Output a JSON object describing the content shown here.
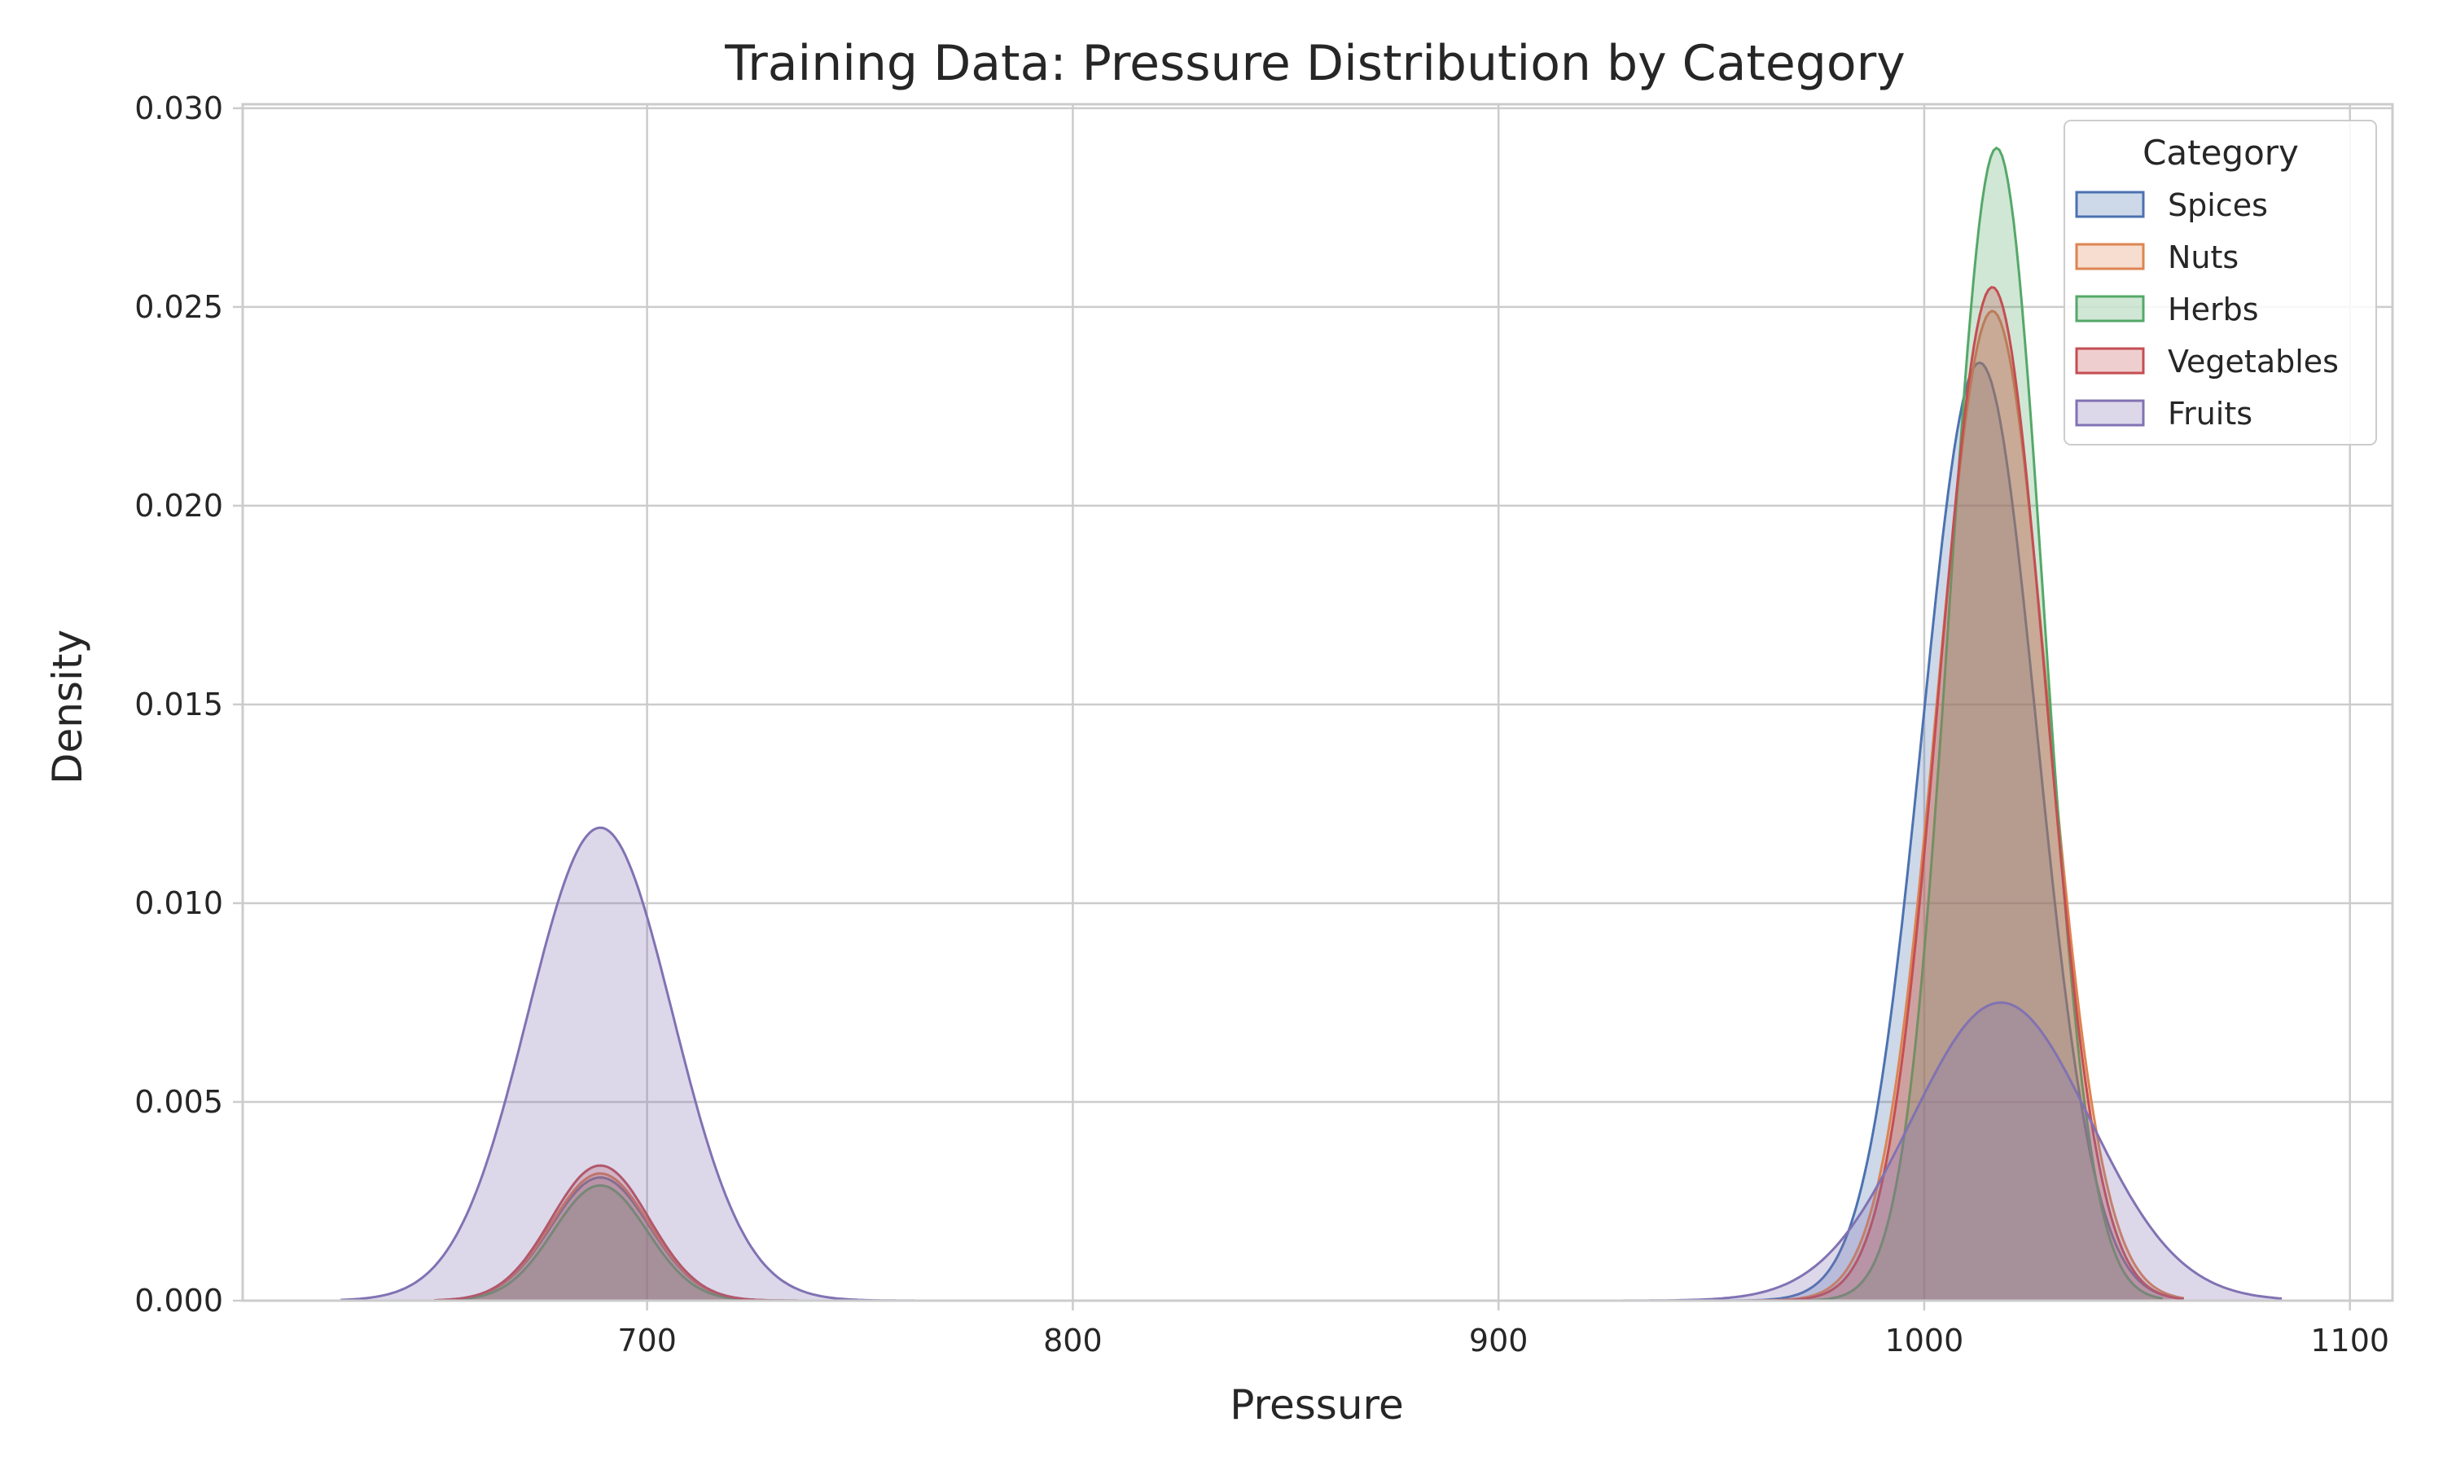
{
  "chart_data": {
    "type": "area",
    "title": "Training Data: Pressure Distribution by Category",
    "xlabel": "Pressure",
    "ylabel": "Density",
    "xlim": [
      605,
      1110
    ],
    "ylim": [
      0,
      0.0301
    ],
    "xticks": [
      700,
      800,
      900,
      1000,
      1100
    ],
    "yticks": [
      0.0,
      0.005,
      0.01,
      0.015,
      0.02,
      0.025,
      0.03
    ],
    "ytick_labels": [
      "0.000",
      "0.005",
      "0.010",
      "0.015",
      "0.020",
      "0.025",
      "0.030"
    ],
    "grid": true,
    "legend": {
      "title": "Category",
      "position": "top-right"
    },
    "series": [
      {
        "name": "Spices",
        "color": "#4c72b0",
        "components": [
          {
            "mu": 689,
            "sigma": 11.5,
            "peak": 0.0031
          },
          {
            "mu": 1013,
            "sigma": 13.5,
            "peak": 0.0236
          }
        ],
        "range": [
          650,
          1058
        ]
      },
      {
        "name": "Nuts",
        "color": "#dd8452",
        "components": [
          {
            "mu": 689,
            "sigma": 11.5,
            "peak": 0.0032
          },
          {
            "mu": 1016,
            "sigma": 13.0,
            "peak": 0.0249
          }
        ],
        "range": [
          651,
          1061
        ]
      },
      {
        "name": "Herbs",
        "color": "#55a868",
        "components": [
          {
            "mu": 689,
            "sigma": 11.0,
            "peak": 0.0029
          },
          {
            "mu": 1017,
            "sigma": 11.0,
            "peak": 0.029
          }
        ],
        "range": [
          652,
          1056
        ]
      },
      {
        "name": "Vegetables",
        "color": "#c44e52",
        "components": [
          {
            "mu": 689,
            "sigma": 11.5,
            "peak": 0.0034
          },
          {
            "mu": 1016,
            "sigma": 12.5,
            "peak": 0.0255
          }
        ],
        "range": [
          650,
          1061
        ]
      },
      {
        "name": "Fruits",
        "color": "#8172b3",
        "components": [
          {
            "mu": 689,
            "sigma": 17.0,
            "peak": 0.0119
          },
          {
            "mu": 1018,
            "sigma": 21.0,
            "peak": 0.0075
          }
        ],
        "range": [
          628,
          1084
        ]
      }
    ]
  }
}
